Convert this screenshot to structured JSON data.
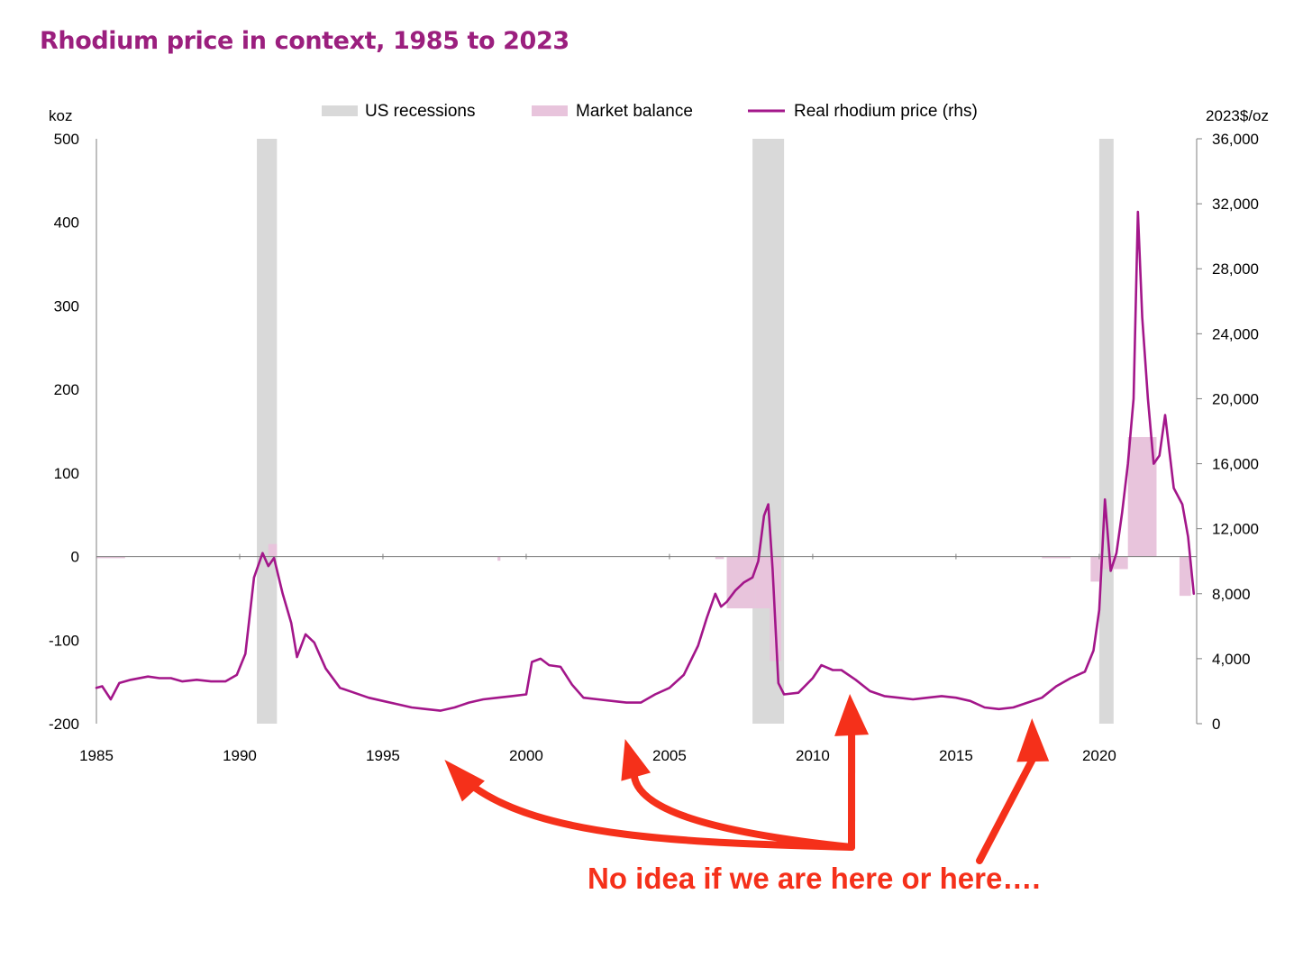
{
  "colors": {
    "title": "#9b1f7e",
    "recession": "#d9d9d9",
    "balance": "#e8c4dc",
    "price": "#a3168a",
    "annotation": "#f5301a"
  },
  "chart_data": {
    "type": "line",
    "title": "Rhodium price in context, 1985 to 2023",
    "ylabel_left": "koz",
    "ylabel_right": "2023$/oz",
    "xlim": [
      1985,
      2023.4
    ],
    "ylim_left": [
      -200,
      500
    ],
    "ylim_right": [
      0,
      36000
    ],
    "x_ticks": [
      1985,
      1990,
      1995,
      2000,
      2005,
      2010,
      2015,
      2020
    ],
    "x_tick_labels": [
      "1985",
      "1990",
      "1995",
      "2000",
      "2005",
      "2010",
      "2015",
      "2020"
    ],
    "y_left_ticks": [
      500,
      400,
      300,
      200,
      100,
      0,
      -100,
      -200
    ],
    "y_left_tick_labels": [
      "500",
      "400",
      "300",
      "200",
      "100",
      "0",
      "-100",
      "-200"
    ],
    "y_right_ticks": [
      36000,
      32000,
      28000,
      24000,
      20000,
      16000,
      12000,
      8000,
      4000,
      0
    ],
    "y_right_tick_labels": [
      "36,000",
      "32,000",
      "28,000",
      "24,000",
      "20,000",
      "16,000",
      "12,000",
      "8,000",
      "4,000",
      "0"
    ],
    "grid": false,
    "legend_position": "top",
    "legend": [
      {
        "label": "US recessions",
        "kind": "area"
      },
      {
        "label": "Market balance",
        "kind": "bar"
      },
      {
        "label": "Real rhodium price (rhs)",
        "kind": "line"
      }
    ],
    "recessions": [
      {
        "start": 1990.6,
        "end": 1991.3
      },
      {
        "start": 2007.9,
        "end": 2009.0
      },
      {
        "start": 2020.0,
        "end": 2020.5
      }
    ],
    "market_balance": [
      {
        "start": 1985.0,
        "end": 1986.0,
        "value": -2
      },
      {
        "start": 1991.0,
        "end": 1991.3,
        "value": 15
      },
      {
        "start": 1999.0,
        "end": 1999.1,
        "value": -5
      },
      {
        "start": 2006.6,
        "end": 2006.9,
        "value": -3
      },
      {
        "start": 2007.0,
        "end": 2008.0,
        "value": -62
      },
      {
        "start": 2008.0,
        "end": 2008.9,
        "value": -62
      },
      {
        "start": 2008.5,
        "end": 2008.9,
        "value": -125
      },
      {
        "start": 2018.0,
        "end": 2019.0,
        "value": -2
      },
      {
        "start": 2019.7,
        "end": 2020.0,
        "value": -30
      },
      {
        "start": 2020.0,
        "end": 2021.0,
        "value": -15
      },
      {
        "start": 2021.0,
        "end": 2022.0,
        "value": 143
      },
      {
        "start": 2022.8,
        "end": 2023.2,
        "value": -47
      }
    ],
    "series": [
      {
        "name": "Real rhodium price (rhs)",
        "axis": "right",
        "x": [
          1985.0,
          1985.2,
          1985.5,
          1985.8,
          1986.2,
          1986.8,
          1987.2,
          1987.6,
          1988.0,
          1988.5,
          1989.0,
          1989.5,
          1989.9,
          1990.2,
          1990.5,
          1990.8,
          1991.0,
          1991.2,
          1991.5,
          1991.8,
          1992.0,
          1992.3,
          1992.6,
          1993.0,
          1993.5,
          1994.0,
          1994.5,
          1995.0,
          1995.5,
          1996.0,
          1996.5,
          1997.0,
          1997.5,
          1998.0,
          1998.5,
          1999.0,
          1999.5,
          2000.0,
          2000.2,
          2000.5,
          2000.8,
          2001.2,
          2001.6,
          2002.0,
          2002.5,
          2003.0,
          2003.5,
          2004.0,
          2004.5,
          2005.0,
          2005.5,
          2006.0,
          2006.3,
          2006.6,
          2006.8,
          2007.0,
          2007.3,
          2007.6,
          2007.9,
          2008.1,
          2008.3,
          2008.45,
          2008.6,
          2008.8,
          2009.0,
          2009.5,
          2010.0,
          2010.3,
          2010.7,
          2011.0,
          2011.5,
          2012.0,
          2012.5,
          2013.0,
          2013.5,
          2014.0,
          2014.5,
          2015.0,
          2015.5,
          2016.0,
          2016.5,
          2017.0,
          2017.5,
          2018.0,
          2018.5,
          2019.0,
          2019.5,
          2019.8,
          2020.0,
          2020.2,
          2020.4,
          2020.6,
          2020.8,
          2021.0,
          2021.2,
          2021.35,
          2021.5,
          2021.7,
          2021.9,
          2022.1,
          2022.3,
          2022.6,
          2022.9,
          2023.1,
          2023.3
        ],
        "values": [
          2200,
          2300,
          1500,
          2500,
          2700,
          2900,
          2800,
          2800,
          2600,
          2700,
          2600,
          2600,
          3000,
          4300,
          9000,
          10500,
          9700,
          10200,
          8000,
          6200,
          4100,
          5500,
          5000,
          3400,
          2200,
          1900,
          1600,
          1400,
          1200,
          1000,
          900,
          800,
          1000,
          1300,
          1500,
          1600,
          1700,
          1800,
          3800,
          4000,
          3600,
          3500,
          2400,
          1600,
          1500,
          1400,
          1300,
          1300,
          1800,
          2200,
          3000,
          4800,
          6500,
          8000,
          7200,
          7500,
          8200,
          8700,
          9000,
          10000,
          12800,
          13500,
          9500,
          2500,
          1800,
          1900,
          2800,
          3600,
          3300,
          3300,
          2700,
          2000,
          1700,
          1600,
          1500,
          1600,
          1700,
          1600,
          1400,
          1000,
          900,
          1000,
          1300,
          1600,
          2300,
          2800,
          3200,
          4500,
          7000,
          13800,
          9400,
          10500,
          13000,
          16000,
          20000,
          31500,
          25000,
          20000,
          16000,
          16500,
          19000,
          14500,
          13500,
          11500,
          8000
        ]
      }
    ],
    "annotations": [
      {
        "text": "No idea if we are here or here….",
        "arrow_targets_x": [
          1996.9,
          2003.2,
          2011.2,
          2017.4
        ]
      }
    ]
  }
}
